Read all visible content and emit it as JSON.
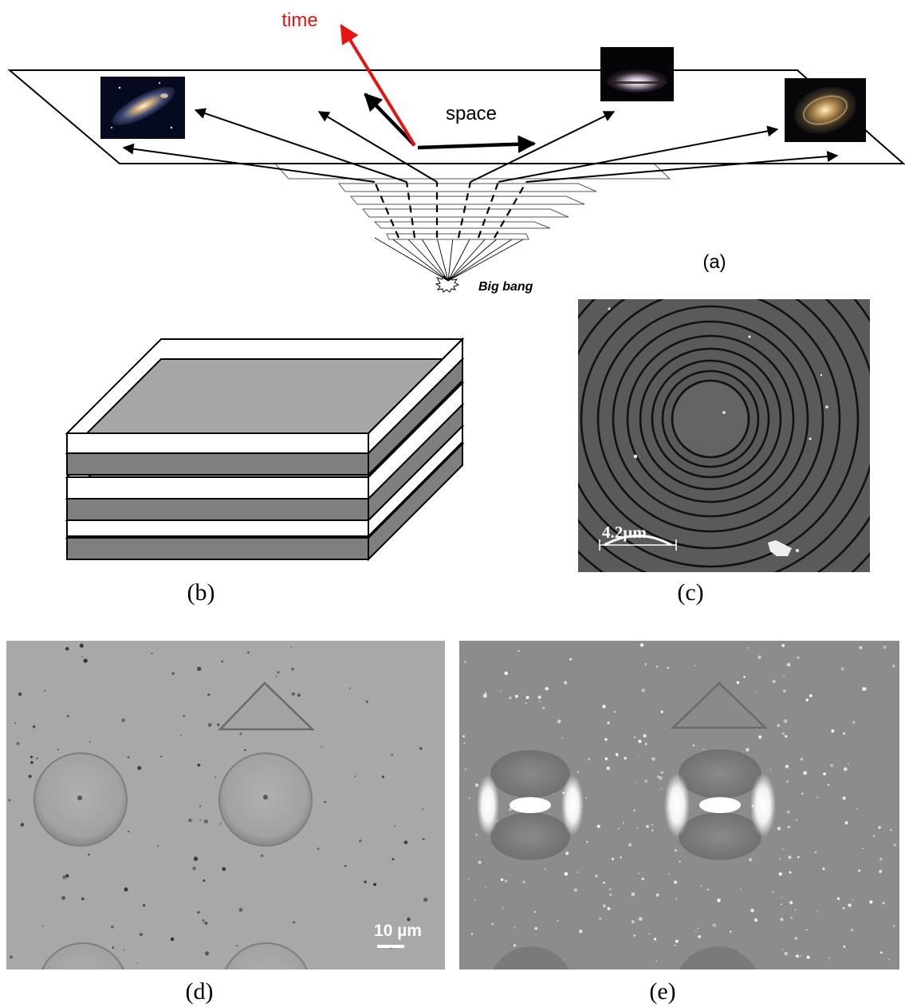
{
  "panel_a": {
    "time_label": "time",
    "space_label": "space",
    "big_bang_label": "Big bang",
    "caption": "(a)"
  },
  "panel_b": {
    "caption": "(b)"
  },
  "panel_c": {
    "scale_label": "4.2µm",
    "caption": "(c)"
  },
  "panel_d": {
    "scale_label": "10 µm",
    "caption": "(d)"
  },
  "panel_e": {
    "caption": "(e)"
  },
  "colors": {
    "time_arrow": "#e8130f",
    "plate_gray": "#a6a6a6",
    "plate_dark": "#7f7f7f",
    "micro_d": "#a8a8a8",
    "micro_e": "#8c8c8c",
    "micro_c": "#555555"
  },
  "icons": [
    "andromeda-galaxy-image",
    "sombrero-galaxy-image",
    "spiral-galaxy-image"
  ]
}
